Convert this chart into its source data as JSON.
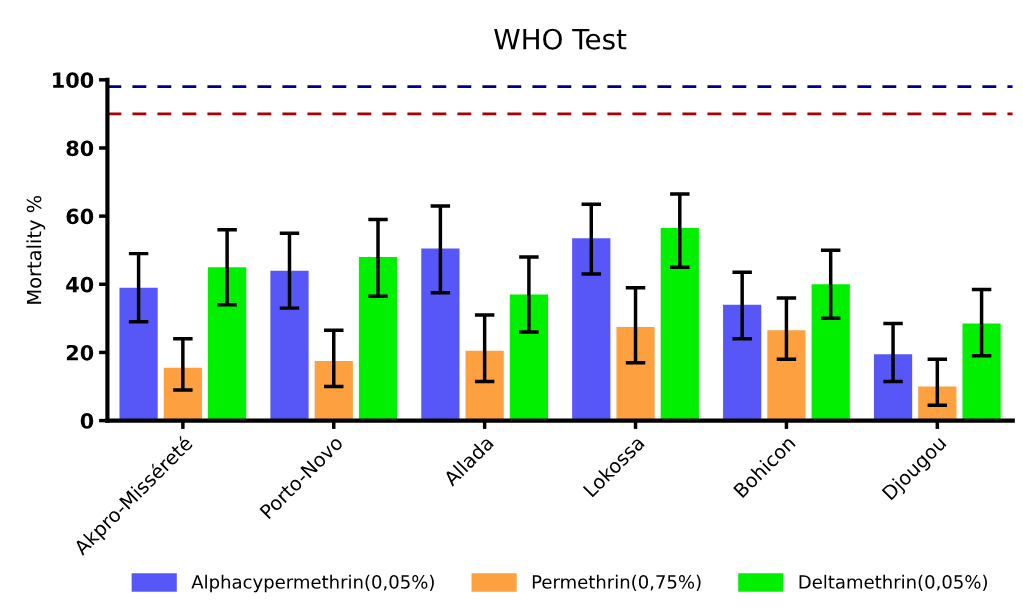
{
  "chart_data": {
    "type": "bar",
    "title": "WHO Test",
    "ylabel": "Mortality %",
    "categories": [
      "Akpro-Misséreté",
      "Porto-Novo",
      "Allada",
      "Lokossa",
      "Bohicon",
      "Djougou"
    ],
    "series": [
      {
        "name": "Alphacypermethrin(0,05%)",
        "color": "#5757f8",
        "values": [
          39,
          44,
          50.5,
          53.5,
          34,
          19.5
        ],
        "errors": [
          [
            29,
            49
          ],
          [
            33,
            55
          ],
          [
            37.5,
            63
          ],
          [
            43,
            63.5
          ],
          [
            24,
            43.5
          ],
          [
            11.5,
            28.5
          ]
        ]
      },
      {
        "name": "Permethrin(0,75%)",
        "color": "#fda040",
        "values": [
          15.5,
          17.5,
          20.5,
          27.5,
          26.5,
          10
        ],
        "errors": [
          [
            9,
            24
          ],
          [
            10,
            26.5
          ],
          [
            11.5,
            31
          ],
          [
            17,
            39
          ],
          [
            18,
            36
          ],
          [
            4.5,
            18
          ]
        ]
      },
      {
        "name": "Deltamethrin(0,05%)",
        "color": "#00f000",
        "values": [
          45,
          48,
          37,
          56.5,
          40,
          28.5
        ],
        "errors": [
          [
            34,
            56
          ],
          [
            36.5,
            59
          ],
          [
            26,
            48
          ],
          [
            45,
            66.5
          ],
          [
            30,
            50
          ],
          [
            19,
            38.5
          ]
        ]
      }
    ],
    "ylim": [
      0,
      100
    ],
    "yticks": [
      0,
      20,
      40,
      60,
      80,
      100
    ],
    "ref_lines": [
      {
        "axis": "y",
        "value": 98,
        "color": "#000080",
        "line_style": "dashed"
      },
      {
        "axis": "y",
        "value": 90,
        "color": "#aa0000",
        "line_style": "dashed"
      }
    ],
    "legend": "bottom",
    "grid": false
  }
}
